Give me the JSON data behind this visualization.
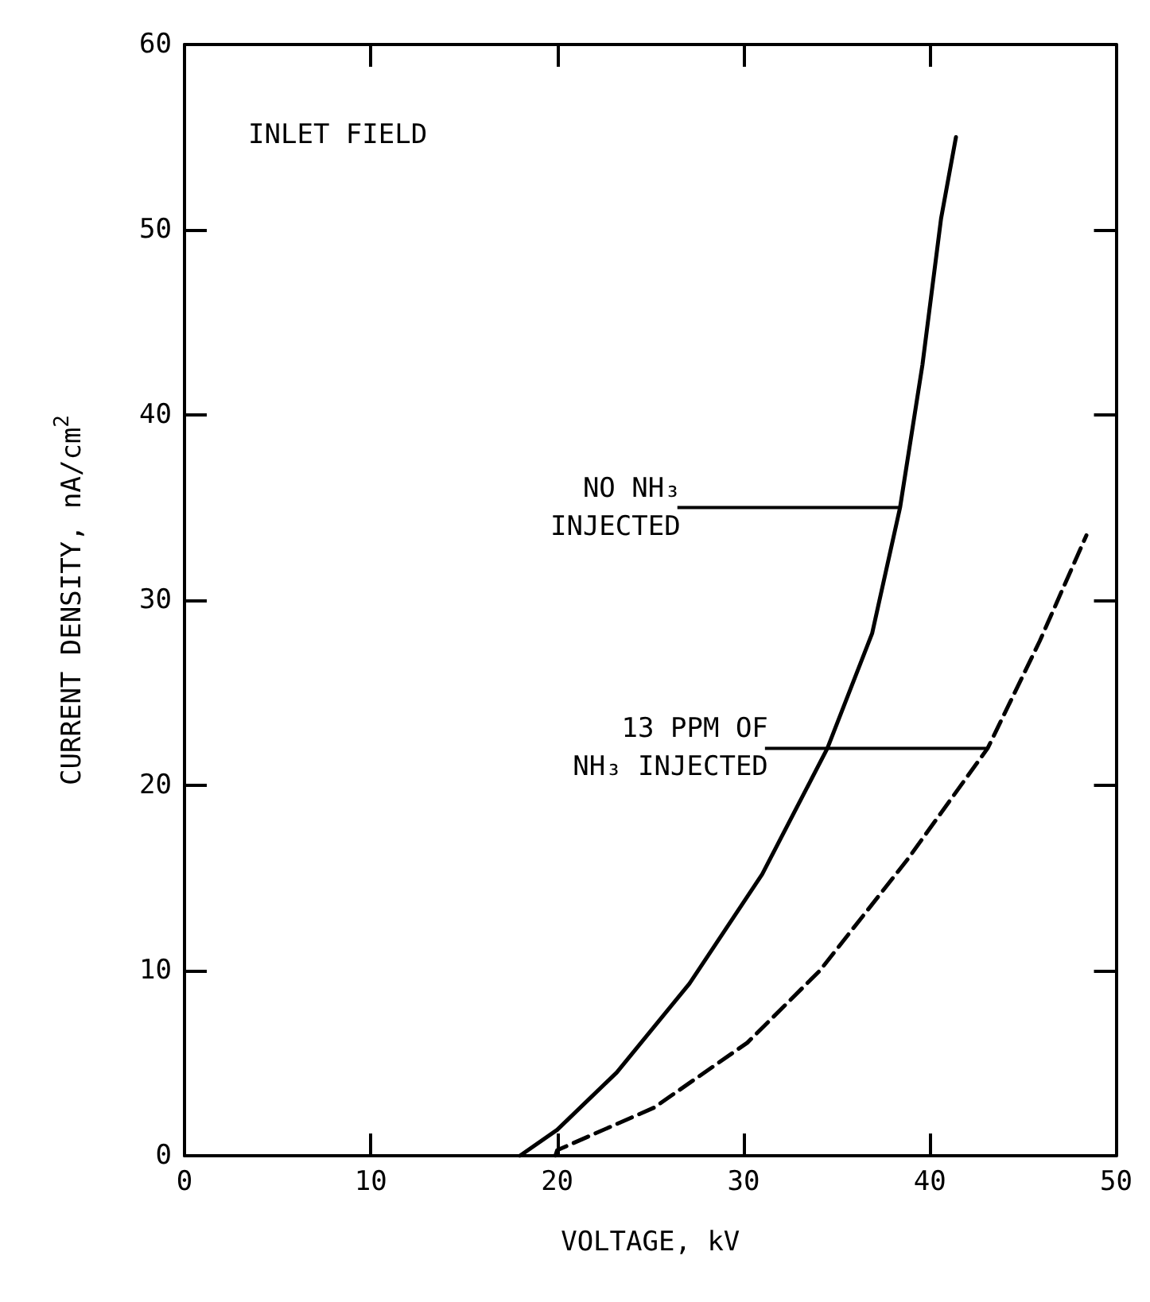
{
  "chart_data": {
    "type": "line",
    "xlabel": "VOLTAGE, kV",
    "ylabel": "CURRENT DENSITY, nA/cm$^{2}$",
    "xlim": [
      0,
      50
    ],
    "xticks": [
      0,
      10,
      20,
      30,
      40,
      50
    ],
    "ylim": [
      0,
      60
    ],
    "yticks": [
      0,
      10,
      20,
      30,
      40,
      50,
      60
    ],
    "grid": false,
    "marker": "none",
    "series": [
      {
        "color": "#000000",
        "line_style": "solid",
        "x": [
          18,
          20,
          23.2,
          27.1,
          31,
          34.5,
          36.9,
          38.4,
          39.6,
          40.6,
          41.4
        ],
        "values": [
          0,
          1.4,
          4.5,
          9.3,
          15.2,
          22,
          28.2,
          35,
          42.7,
          50.6,
          55
        ]
      },
      {
        "color": "#000000",
        "line_style": "dashed",
        "x": [
          19.9,
          20,
          25.2,
          30.2,
          34.1,
          38.8,
          43.1,
          45.9,
          48.4
        ],
        "values": [
          0,
          0.3,
          2.6,
          6.1,
          10,
          16,
          22,
          27.8,
          33.5
        ]
      }
    ],
    "annotations": [
      "INLET FIELD",
      {
        "text": "NO NH₃\nINJECTED",
        "x": 38.4,
        "y": 35
      },
      {
        "text": "13 PPM OF\nNH₃ INJECTED",
        "x": 43.1,
        "y": 22
      }
    ]
  }
}
